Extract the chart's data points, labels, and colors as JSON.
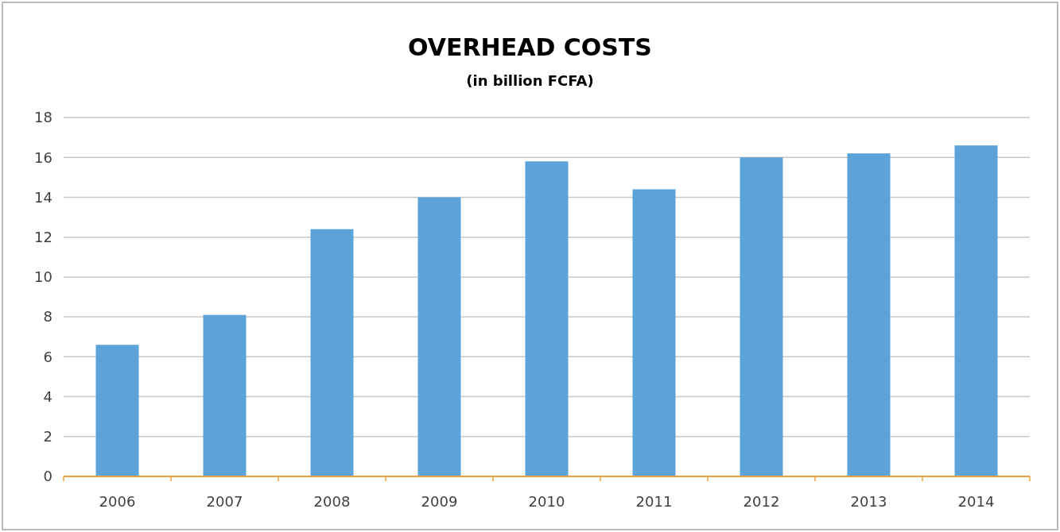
{
  "chart_data": {
    "type": "bar",
    "title": "OVERHEAD COSTS",
    "subtitle": "(in billion FCFA)",
    "categories": [
      "2006",
      "2007",
      "2008",
      "2009",
      "2010",
      "2011",
      "2012",
      "2013",
      "2014"
    ],
    "values": [
      6.6,
      8.1,
      12.4,
      14.0,
      15.8,
      14.4,
      16.0,
      16.2,
      16.6
    ],
    "color": "#5ba3d9",
    "ylim": [
      0,
      18
    ],
    "yticks": [
      0,
      2,
      4,
      6,
      8,
      10,
      12,
      14,
      16,
      18
    ],
    "grid": "y"
  }
}
